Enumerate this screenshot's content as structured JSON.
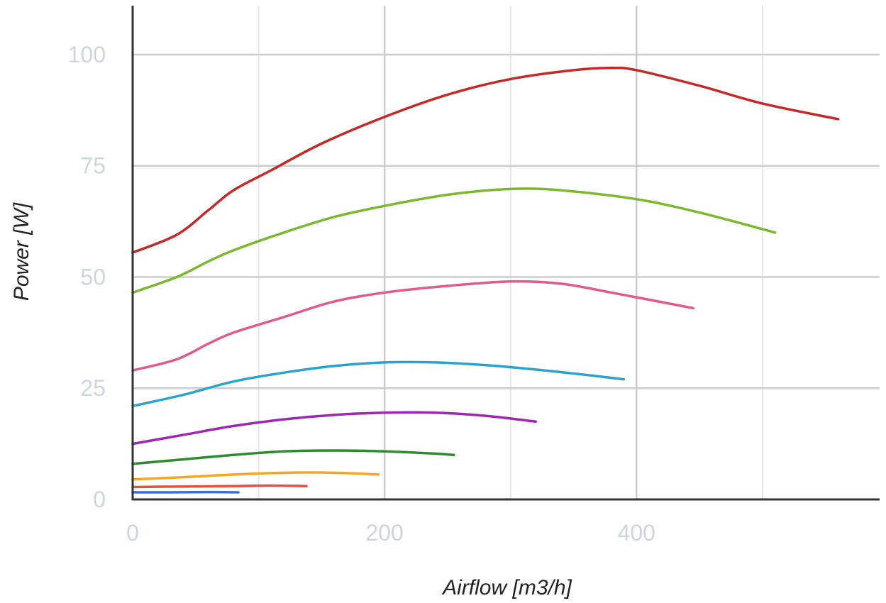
{
  "chart_data": {
    "type": "line",
    "title": "",
    "xlabel": "Airflow [m3/h]",
    "ylabel": "Power [W]",
    "xlim": [
      0,
      593
    ],
    "ylim": [
      0,
      111
    ],
    "x_ticks": [
      0,
      200,
      400
    ],
    "x_tick_labels": [
      "0",
      "200",
      "400"
    ],
    "y_ticks": [
      0,
      25,
      50,
      75,
      100
    ],
    "y_tick_labels": [
      "0",
      "25",
      "50",
      "75",
      "100"
    ],
    "grid": true,
    "legend": "none",
    "series": [
      {
        "color": "#c62828",
        "x": [
          0,
          35,
          60,
          80,
          110,
          150,
          200,
          250,
          300,
          350,
          380,
          400,
          450,
          500,
          560
        ],
        "y": [
          55.5,
          59.5,
          65,
          69.5,
          74,
          80,
          86,
          91,
          94.5,
          96.5,
          97,
          96.5,
          93,
          89,
          85.5
        ]
      },
      {
        "color": "#7cb82f",
        "x": [
          0,
          35,
          60,
          80,
          120,
          160,
          200,
          250,
          300,
          340,
          400,
          450,
          510
        ],
        "y": [
          46.5,
          50,
          53.5,
          56,
          60,
          63.5,
          66,
          68.5,
          69.8,
          69.5,
          67.5,
          64.5,
          60
        ]
      },
      {
        "color": "#e05a8a",
        "x": [
          0,
          35,
          60,
          80,
          120,
          160,
          200,
          250,
          300,
          340,
          380,
          445
        ],
        "y": [
          29,
          31.5,
          35,
          37.5,
          41,
          44.5,
          46.5,
          48,
          49,
          48.5,
          46.5,
          43
        ]
      },
      {
        "color": "#2aa3cf",
        "x": [
          0,
          40,
          80,
          120,
          160,
          200,
          240,
          280,
          320,
          360,
          390
        ],
        "y": [
          21,
          23.5,
          26.5,
          28.5,
          30,
          30.8,
          30.8,
          30.2,
          29.2,
          28,
          27
        ]
      },
      {
        "color": "#9c27b0",
        "x": [
          0,
          40,
          80,
          120,
          160,
          200,
          240,
          280,
          320
        ],
        "y": [
          12.5,
          14.5,
          16.5,
          18,
          19,
          19.5,
          19.5,
          18.8,
          17.5
        ]
      },
      {
        "color": "#2e8b2e",
        "x": [
          0,
          40,
          80,
          120,
          160,
          200,
          240,
          255
        ],
        "y": [
          8,
          9,
          10,
          10.8,
          11,
          10.8,
          10.3,
          10
        ]
      },
      {
        "color": "#f5a623",
        "x": [
          0,
          40,
          80,
          120,
          160,
          195
        ],
        "y": [
          4.5,
          5,
          5.6,
          6,
          6,
          5.6
        ]
      },
      {
        "color": "#e0533e",
        "x": [
          0,
          40,
          80,
          110,
          138
        ],
        "y": [
          2.8,
          2.9,
          3,
          3.1,
          3
        ]
      },
      {
        "color": "#3b6fd4",
        "x": [
          0,
          30,
          60,
          84
        ],
        "y": [
          1.6,
          1.6,
          1.65,
          1.6
        ]
      }
    ]
  }
}
